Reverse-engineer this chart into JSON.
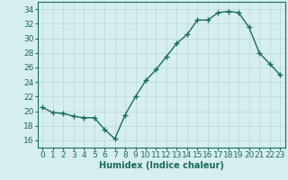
{
  "x": [
    0,
    1,
    2,
    3,
    4,
    5,
    6,
    7,
    8,
    9,
    10,
    11,
    12,
    13,
    14,
    15,
    16,
    17,
    18,
    19,
    20,
    21,
    22,
    23
  ],
  "y": [
    20.5,
    19.8,
    19.7,
    19.3,
    19.1,
    19.1,
    17.5,
    16.2,
    19.5,
    22.0,
    24.2,
    25.7,
    27.5,
    29.3,
    30.5,
    32.5,
    32.5,
    33.5,
    33.7,
    33.5,
    31.5,
    28.0,
    26.5,
    25.0
  ],
  "xlabel": "Humidex (Indice chaleur)",
  "ylim": [
    15,
    35
  ],
  "yticks": [
    16,
    18,
    20,
    22,
    24,
    26,
    28,
    30,
    32,
    34
  ],
  "xlim": [
    -0.5,
    23.5
  ],
  "xticks": [
    0,
    1,
    2,
    3,
    4,
    5,
    6,
    7,
    8,
    9,
    10,
    11,
    12,
    13,
    14,
    15,
    16,
    17,
    18,
    19,
    20,
    21,
    22,
    23
  ],
  "line_color": "#1a6b5a",
  "marker": "+",
  "bg_color": "#d6eeee",
  "grid_color": "#b8d8d8",
  "axis_color": "#1a6b5a",
  "label_fontsize": 7.0,
  "tick_fontsize": 6.5
}
